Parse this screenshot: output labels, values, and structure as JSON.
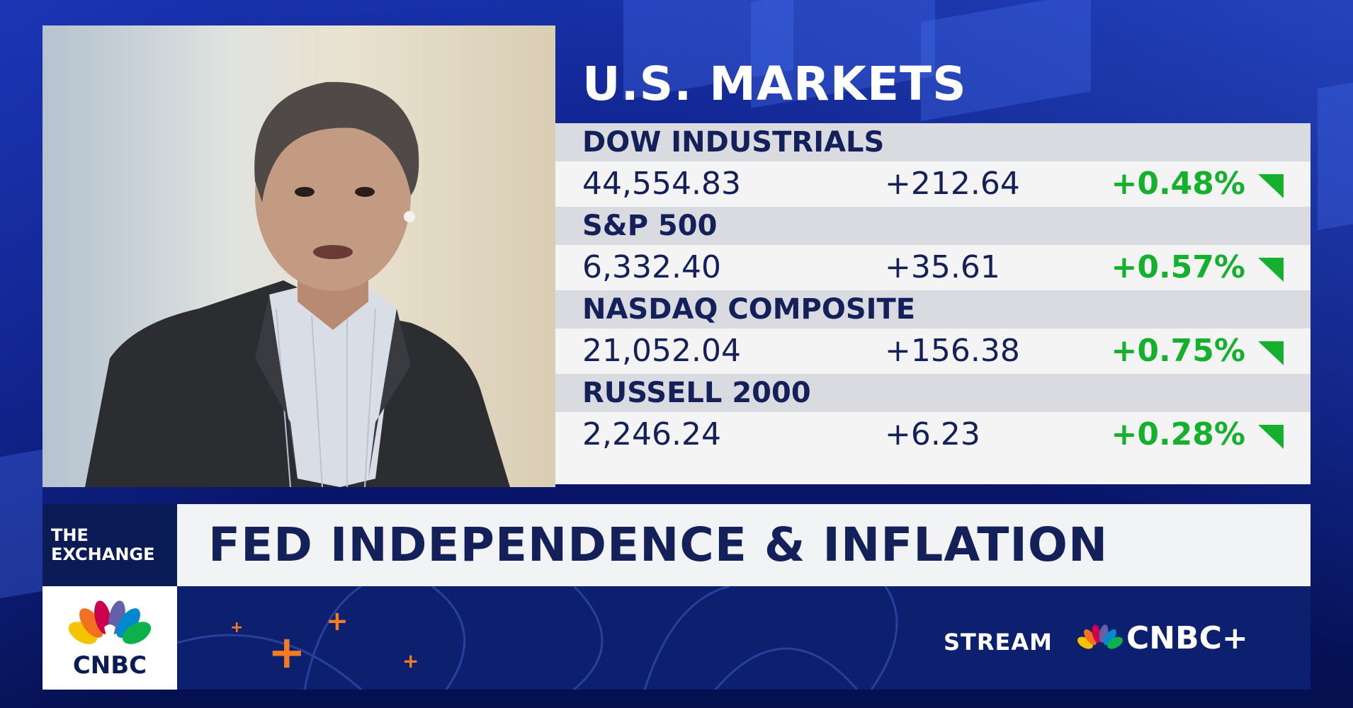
{
  "markets": {
    "title": "U.S. MARKETS",
    "rows": [
      {
        "name": "DOW INDUSTRIALS",
        "last": "44,554.83",
        "change": "+212.64",
        "percent": "+0.48%"
      },
      {
        "name": "S&P 500",
        "last": "6,332.40",
        "change": "+35.61",
        "percent": "+0.57%"
      },
      {
        "name": "NASDAQ COMPOSITE",
        "last": "21,052.04",
        "change": "+156.38",
        "percent": "+0.75%"
      },
      {
        "name": "RUSSELL 2000",
        "last": "2,246.24",
        "change": "+6.23",
        "percent": "+0.28%"
      }
    ]
  },
  "lower_third": {
    "show_line1": "THE",
    "show_line2": "EXCHANGE",
    "headline": "FED INDEPENDENCE & INFLATION"
  },
  "branding": {
    "logo_text": "CNBC",
    "stream_label": "STREAM",
    "stream_brand": "CNBC+"
  },
  "colors": {
    "navy": "#14205a",
    "gain_green": "#15b02d",
    "accent_orange": "#f57b20",
    "background_blue": "#0a1a7a"
  }
}
